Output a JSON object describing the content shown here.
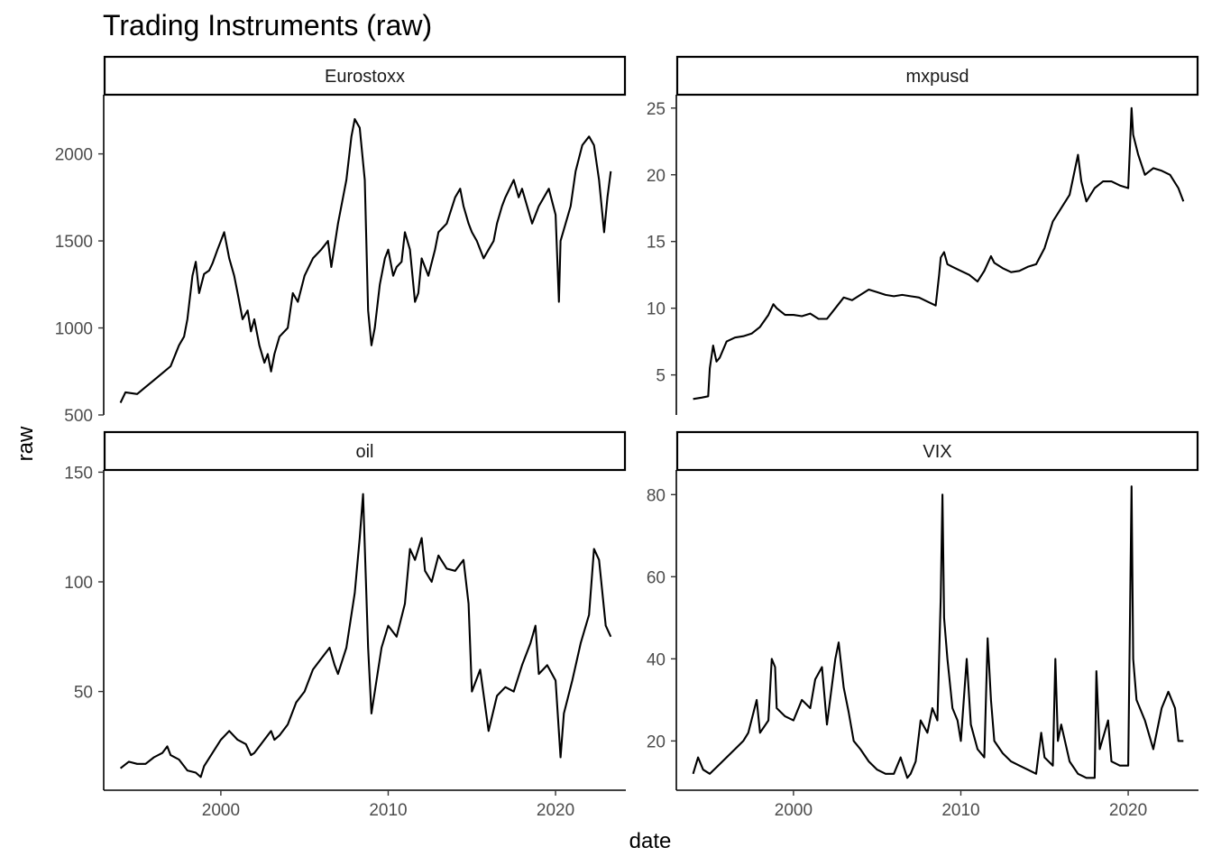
{
  "chart_data": {
    "type": "line",
    "title": "Trading Instruments (raw)",
    "xlabel": "date",
    "ylabel": "raw",
    "xlim": [
      1993.0,
      2024.2
    ],
    "x_ticks": [
      2000,
      2010,
      2020
    ],
    "facet_layout": "2x2, free y scales",
    "grid": false,
    "panels": [
      {
        "name": "Eurostoxx",
        "ylim": [
          500,
          2340
        ],
        "y_ticks": [
          500,
          1000,
          1500,
          2000
        ],
        "x": [
          1994.0,
          1994.3,
          1995.0,
          1995.5,
          1996.0,
          1996.5,
          1997.0,
          1997.5,
          1997.8,
          1998.0,
          1998.3,
          1998.5,
          1998.7,
          1999.0,
          1999.3,
          1999.5,
          1999.8,
          2000.0,
          2000.2,
          2000.5,
          2000.8,
          2001.0,
          2001.3,
          2001.6,
          2001.8,
          2002.0,
          2002.3,
          2002.6,
          2002.8,
          2003.0,
          2003.2,
          2003.5,
          2004.0,
          2004.3,
          2004.6,
          2005.0,
          2005.5,
          2006.0,
          2006.4,
          2006.6,
          2007.0,
          2007.5,
          2007.8,
          2008.0,
          2008.3,
          2008.6,
          2008.8,
          2009.0,
          2009.2,
          2009.5,
          2009.8,
          2010.0,
          2010.3,
          2010.5,
          2010.8,
          2011.0,
          2011.3,
          2011.6,
          2011.8,
          2012.0,
          2012.4,
          2012.8,
          2013.0,
          2013.5,
          2014.0,
          2014.3,
          2014.5,
          2014.8,
          2015.0,
          2015.3,
          2015.7,
          2016.0,
          2016.3,
          2016.5,
          2016.8,
          2017.0,
          2017.5,
          2017.8,
          2018.0,
          2018.3,
          2018.6,
          2018.8,
          2019.0,
          2019.3,
          2019.6,
          2020.0,
          2020.2,
          2020.3,
          2020.6,
          2020.9,
          2021.2,
          2021.6,
          2022.0,
          2022.3,
          2022.6,
          2022.9,
          2023.1,
          2023.3
        ],
        "values": [
          570,
          630,
          620,
          660,
          700,
          740,
          780,
          900,
          950,
          1050,
          1300,
          1380,
          1200,
          1310,
          1330,
          1370,
          1450,
          1500,
          1550,
          1400,
          1300,
          1200,
          1050,
          1100,
          980,
          1050,
          900,
          800,
          850,
          750,
          850,
          950,
          1000,
          1200,
          1150,
          1300,
          1400,
          1450,
          1500,
          1350,
          1600,
          1850,
          2100,
          2200,
          2150,
          1850,
          1100,
          900,
          1000,
          1250,
          1400,
          1450,
          1300,
          1350,
          1380,
          1550,
          1450,
          1150,
          1200,
          1400,
          1300,
          1450,
          1550,
          1600,
          1750,
          1800,
          1700,
          1600,
          1550,
          1500,
          1400,
          1450,
          1500,
          1600,
          1700,
          1750,
          1850,
          1750,
          1800,
          1700,
          1600,
          1650,
          1700,
          1750,
          1800,
          1650,
          1150,
          1500,
          1600,
          1700,
          1900,
          2050,
          2100,
          2050,
          1850,
          1550,
          1750,
          1900
        ]
      },
      {
        "name": "mxpusd",
        "ylim": [
          2.0,
          26.0
        ],
        "y_ticks": [
          5,
          10,
          15,
          20,
          25
        ],
        "x": [
          1994.0,
          1994.5,
          1994.9,
          1995.0,
          1995.2,
          1995.4,
          1995.6,
          1996.0,
          1996.5,
          1997.0,
          1997.5,
          1998.0,
          1998.5,
          1998.8,
          1999.0,
          1999.5,
          2000.0,
          2000.5,
          2001.0,
          2001.5,
          2002.0,
          2002.5,
          2003.0,
          2003.5,
          2004.0,
          2004.5,
          2005.0,
          2005.5,
          2006.0,
          2006.5,
          2007.0,
          2007.5,
          2008.0,
          2008.5,
          2008.7,
          2008.8,
          2009.0,
          2009.2,
          2009.5,
          2010.0,
          2010.5,
          2011.0,
          2011.4,
          2011.8,
          2012.0,
          2012.5,
          2013.0,
          2013.5,
          2014.0,
          2014.5,
          2015.0,
          2015.5,
          2016.0,
          2016.5,
          2017.0,
          2017.2,
          2017.5,
          2018.0,
          2018.5,
          2019.0,
          2019.5,
          2020.0,
          2020.2,
          2020.3,
          2020.6,
          2021.0,
          2021.5,
          2022.0,
          2022.5,
          2023.0,
          2023.3
        ],
        "values": [
          3.2,
          3.3,
          3.4,
          5.5,
          7.2,
          6.0,
          6.3,
          7.5,
          7.8,
          7.9,
          8.1,
          8.6,
          9.5,
          10.3,
          10.0,
          9.5,
          9.5,
          9.4,
          9.6,
          9.2,
          9.2,
          10.0,
          10.8,
          10.6,
          11.0,
          11.4,
          11.2,
          11.0,
          10.9,
          11.0,
          10.9,
          10.8,
          10.5,
          10.2,
          12.5,
          13.8,
          14.2,
          13.3,
          13.1,
          12.8,
          12.5,
          12.0,
          12.8,
          13.9,
          13.4,
          13.0,
          12.7,
          12.8,
          13.1,
          13.3,
          14.5,
          16.5,
          17.5,
          18.5,
          21.5,
          19.5,
          18.0,
          19.0,
          19.5,
          19.5,
          19.2,
          19.0,
          25.0,
          23.0,
          21.5,
          20.0,
          20.5,
          20.3,
          20.0,
          19.0,
          18.0
        ]
      },
      {
        "name": "oil",
        "ylim": [
          5,
          151
        ],
        "y_ticks": [
          50,
          100,
          150
        ],
        "x": [
          1994.0,
          1994.5,
          1995.0,
          1995.5,
          1996.0,
          1996.5,
          1996.8,
          1997.0,
          1997.5,
          1998.0,
          1998.5,
          1998.8,
          1999.0,
          1999.5,
          2000.0,
          2000.5,
          2001.0,
          2001.5,
          2001.8,
          2002.0,
          2002.5,
          2003.0,
          2003.2,
          2003.5,
          2004.0,
          2004.5,
          2005.0,
          2005.5,
          2006.0,
          2006.5,
          2006.8,
          2007.0,
          2007.5,
          2008.0,
          2008.3,
          2008.5,
          2008.8,
          2009.0,
          2009.3,
          2009.6,
          2010.0,
          2010.5,
          2011.0,
          2011.3,
          2011.6,
          2012.0,
          2012.2,
          2012.6,
          2013.0,
          2013.5,
          2014.0,
          2014.5,
          2014.8,
          2015.0,
          2015.5,
          2016.0,
          2016.5,
          2017.0,
          2017.5,
          2018.0,
          2018.5,
          2018.8,
          2019.0,
          2019.5,
          2020.0,
          2020.3,
          2020.5,
          2021.0,
          2021.5,
          2022.0,
          2022.3,
          2022.6,
          2023.0,
          2023.3
        ],
        "values": [
          15,
          18,
          17,
          17,
          20,
          22,
          25,
          21,
          19,
          14,
          13,
          11,
          16,
          22,
          28,
          32,
          28,
          26,
          21,
          22,
          27,
          32,
          28,
          30,
          35,
          45,
          50,
          60,
          65,
          70,
          62,
          58,
          70,
          95,
          120,
          140,
          70,
          40,
          55,
          70,
          80,
          75,
          90,
          115,
          110,
          120,
          105,
          100,
          112,
          106,
          105,
          110,
          90,
          50,
          60,
          32,
          48,
          52,
          50,
          62,
          72,
          80,
          58,
          62,
          55,
          20,
          40,
          55,
          72,
          85,
          115,
          110,
          80,
          75
        ]
      },
      {
        "name": "VIX",
        "ylim": [
          8.0,
          86.0
        ],
        "y_ticks": [
          20,
          40,
          60,
          80
        ],
        "x": [
          1994.0,
          1994.3,
          1994.6,
          1995.0,
          1995.5,
          1996.0,
          1996.5,
          1997.0,
          1997.3,
          1997.8,
          1998.0,
          1998.5,
          1998.7,
          1998.9,
          1999.0,
          1999.5,
          2000.0,
          2000.5,
          2001.0,
          2001.3,
          2001.7,
          2002.0,
          2002.5,
          2002.7,
          2003.0,
          2003.3,
          2003.6,
          2004.0,
          2004.5,
          2005.0,
          2005.5,
          2006.0,
          2006.4,
          2006.8,
          2007.0,
          2007.3,
          2007.6,
          2008.0,
          2008.3,
          2008.6,
          2008.8,
          2008.9,
          2009.0,
          2009.2,
          2009.5,
          2009.8,
          2010.0,
          2010.35,
          2010.6,
          2011.0,
          2011.4,
          2011.6,
          2011.8,
          2012.0,
          2012.5,
          2013.0,
          2013.5,
          2014.0,
          2014.5,
          2014.8,
          2015.0,
          2015.5,
          2015.65,
          2015.8,
          2016.0,
          2016.5,
          2017.0,
          2017.5,
          2018.0,
          2018.1,
          2018.3,
          2018.8,
          2019.0,
          2019.5,
          2020.0,
          2020.2,
          2020.3,
          2020.5,
          2021.0,
          2021.5,
          2022.0,
          2022.4,
          2022.8,
          2023.0,
          2023.3
        ],
        "values": [
          12,
          16,
          13,
          12,
          14,
          16,
          18,
          20,
          22,
          30,
          22,
          25,
          40,
          38,
          28,
          26,
          25,
          30,
          28,
          35,
          38,
          24,
          40,
          44,
          33,
          27,
          20,
          18,
          15,
          13,
          12,
          12,
          16,
          11,
          12,
          15,
          25,
          22,
          28,
          25,
          55,
          80,
          50,
          40,
          28,
          25,
          20,
          40,
          24,
          18,
          16,
          45,
          30,
          20,
          17,
          15,
          14,
          13,
          12,
          22,
          16,
          14,
          40,
          20,
          24,
          15,
          12,
          11,
          11,
          37,
          18,
          25,
          15,
          14,
          14,
          82,
          40,
          30,
          25,
          18,
          28,
          32,
          28,
          20,
          20
        ]
      }
    ]
  }
}
